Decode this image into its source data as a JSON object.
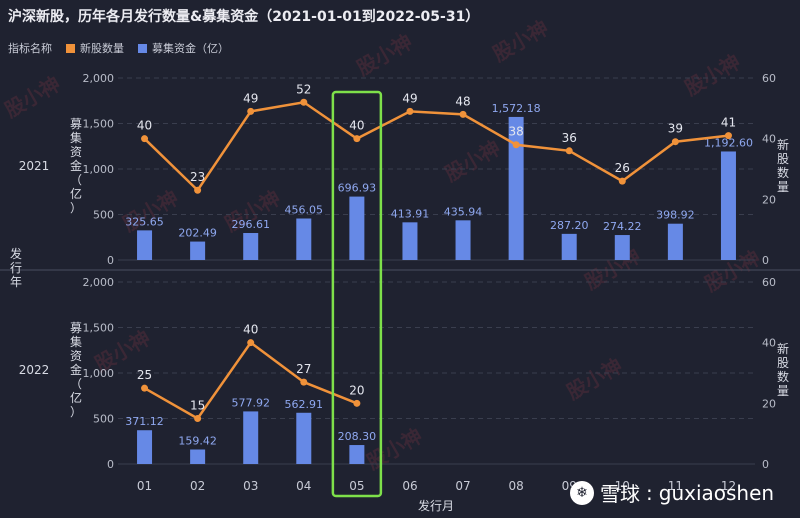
{
  "title": "沪深新股，历年各月发行数量&募集资金（2021-01-01到2022-05-31）",
  "legend": {
    "label": "指标名称",
    "ipo_count": "新股数量",
    "funds": "募集资金（亿）"
  },
  "colors": {
    "bar": "#6689e6",
    "line": "#f0923a",
    "highlight": "#7ee04a",
    "bg": "#1f2230"
  },
  "watermark": {
    "brand": "雪球",
    "user": "guxiaoshen",
    "stamp": "股小神"
  },
  "chart_data": {
    "type": "bar",
    "x_label": "发行月",
    "row_label": "发行年",
    "left_axis_label": "募集资金（亿）",
    "right_axis_label": "新股数量",
    "categories": [
      "01",
      "02",
      "03",
      "04",
      "05",
      "06",
      "07",
      "08",
      "09",
      "10",
      "11",
      "12"
    ],
    "highlight_category": "05",
    "left_ylim": [
      0,
      2000
    ],
    "left_ticks": [
      "0",
      "500",
      "1,000",
      "1,500",
      "2,000"
    ],
    "right_ylim": [
      0,
      60
    ],
    "right_ticks": [
      "0",
      "20",
      "40",
      "60"
    ],
    "panels": [
      {
        "year": "2021",
        "funds": [
          325.65,
          202.49,
          296.61,
          456.05,
          696.93,
          413.91,
          435.94,
          1572.18,
          287.2,
          274.22,
          398.92,
          1192.6
        ],
        "funds_labels": [
          "325.65",
          "202.49",
          "296.61",
          "456.05",
          "696.93",
          "413.91",
          "435.94",
          "1,572.18",
          "287.20",
          "274.22",
          "398.92",
          "1,192.60"
        ],
        "count": [
          40,
          23,
          49,
          52,
          40,
          49,
          48,
          38,
          36,
          26,
          39,
          41
        ]
      },
      {
        "year": "2022",
        "funds": [
          371.12,
          159.42,
          577.92,
          562.91,
          208.3
        ],
        "funds_labels": [
          "371.12",
          "159.42",
          "577.92",
          "562.91",
          "208.30"
        ],
        "count": [
          25,
          15,
          40,
          27,
          20
        ]
      }
    ]
  }
}
